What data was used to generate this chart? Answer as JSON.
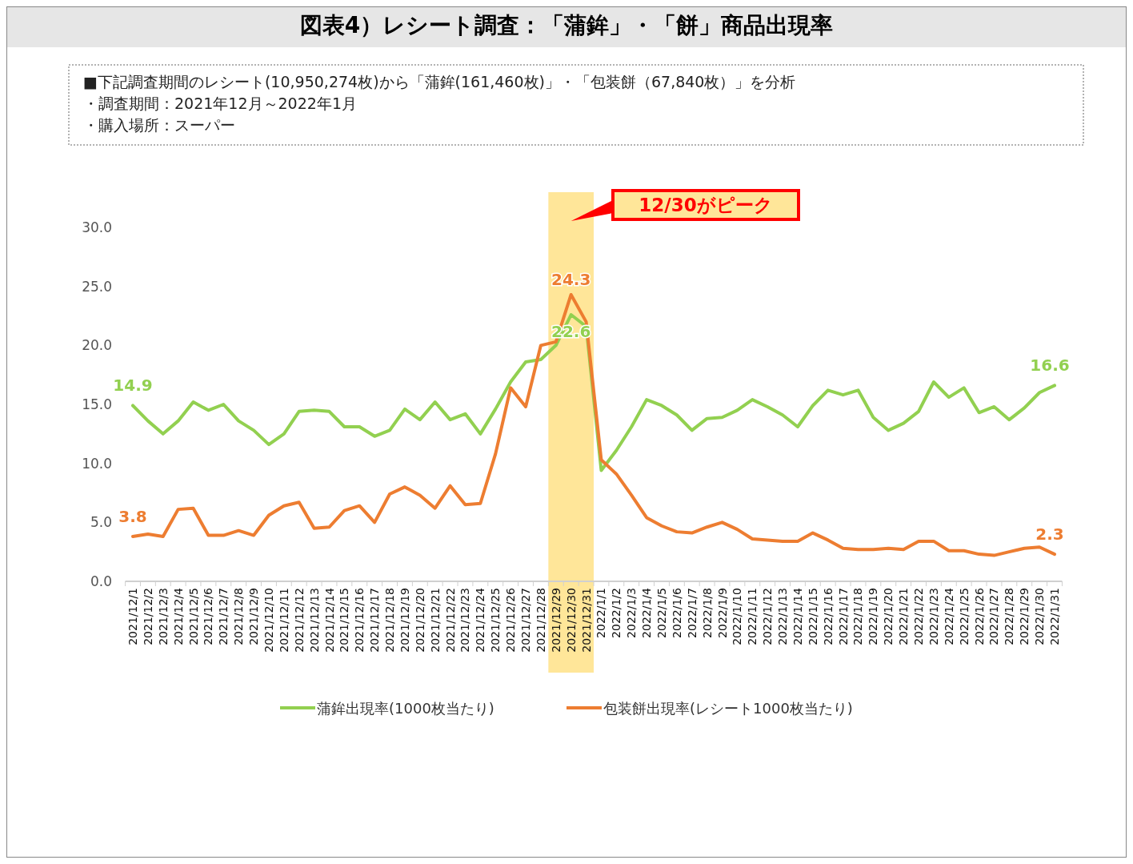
{
  "chart_data": {
    "type": "line",
    "title": "図表4）レシート調査：「蒲鉾」・「餅」商品出現率",
    "subtitle": "■下記調査期間のレシート(10,950,274枚)から「蒲鉾(161,460枚)」・「包装餅（67,840枚）」を分析",
    "categories": [
      "2021/12/1",
      "2021/12/2",
      "2021/12/3",
      "2021/12/4",
      "2021/12/5",
      "2021/12/6",
      "2021/12/7",
      "2021/12/8",
      "2021/12/9",
      "2021/12/10",
      "2021/12/11",
      "2021/12/12",
      "2021/12/13",
      "2021/12/14",
      "2021/12/15",
      "2021/12/16",
      "2021/12/17",
      "2021/12/18",
      "2021/12/19",
      "2021/12/20",
      "2021/12/21",
      "2021/12/22",
      "2021/12/23",
      "2021/12/24",
      "2021/12/25",
      "2021/12/26",
      "2021/12/27",
      "2021/12/28",
      "2021/12/29",
      "2021/12/30",
      "2021/12/31",
      "2022/1/1",
      "2022/1/2",
      "2022/1/3",
      "2022/1/4",
      "2022/1/5",
      "2022/1/6",
      "2022/1/7",
      "2022/1/8",
      "2022/1/9",
      "2022/1/10",
      "2022/1/11",
      "2022/1/12",
      "2022/1/13",
      "2022/1/14",
      "2022/1/15",
      "2022/1/16",
      "2022/1/17",
      "2022/1/18",
      "2022/1/19",
      "2022/1/20",
      "2022/1/21",
      "2022/1/22",
      "2022/1/23",
      "2022/1/24",
      "2022/1/25",
      "2022/1/26",
      "2022/1/27",
      "2022/1/28",
      "2022/1/29",
      "2022/1/30",
      "2022/1/31"
    ],
    "series": [
      {
        "name": "蒲鉾出現率(1000枚当たり)",
        "color": "#92d050",
        "values": [
          14.9,
          13.6,
          12.5,
          13.6,
          15.2,
          14.5,
          15.0,
          13.6,
          12.8,
          11.6,
          12.5,
          14.4,
          14.5,
          14.4,
          13.1,
          13.1,
          12.3,
          12.8,
          14.6,
          13.7,
          15.2,
          13.7,
          14.2,
          12.5,
          14.6,
          16.9,
          18.6,
          18.8,
          20.0,
          22.6,
          21.6,
          9.4,
          11.1,
          13.1,
          15.4,
          14.9,
          14.1,
          12.8,
          13.8,
          13.9,
          14.5,
          15.4,
          14.8,
          14.1,
          13.1,
          14.9,
          16.2,
          15.8,
          16.2,
          13.9,
          12.8,
          13.4,
          14.4,
          16.9,
          15.6,
          16.4,
          14.3,
          14.8,
          13.7,
          14.7,
          16.0,
          16.6
        ],
        "value_labels": [
          "14.9",
          null,
          null,
          null,
          null,
          null,
          null,
          null,
          null,
          null,
          null,
          null,
          null,
          null,
          null,
          null,
          null,
          null,
          null,
          null,
          null,
          null,
          null,
          null,
          null,
          null,
          null,
          null,
          null,
          "22.6",
          null,
          null,
          null,
          null,
          null,
          null,
          null,
          null,
          null,
          null,
          null,
          null,
          null,
          null,
          null,
          null,
          null,
          null,
          null,
          null,
          null,
          null,
          null,
          null,
          null,
          null,
          null,
          null,
          null,
          null,
          null,
          "16.6"
        ]
      },
      {
        "name": "包装餅出現率(レシート1000枚当たり)",
        "color": "#ed7d31",
        "values": [
          3.8,
          4.0,
          3.8,
          6.1,
          6.2,
          3.9,
          3.9,
          4.3,
          3.9,
          5.6,
          6.4,
          6.7,
          4.5,
          4.6,
          6.0,
          6.4,
          5.0,
          7.4,
          8.0,
          7.3,
          6.2,
          8.1,
          6.5,
          6.6,
          10.8,
          16.4,
          14.8,
          20.0,
          20.3,
          24.3,
          22.0,
          10.3,
          9.1,
          7.3,
          5.4,
          4.7,
          4.2,
          4.1,
          4.6,
          5.0,
          4.4,
          3.6,
          3.5,
          3.4,
          3.4,
          4.1,
          3.5,
          2.8,
          2.7,
          2.7,
          2.8,
          2.7,
          3.4,
          3.4,
          2.6,
          2.6,
          2.3,
          2.2,
          2.5,
          2.8,
          2.9,
          2.3
        ],
        "value_labels": [
          "3.8",
          null,
          null,
          null,
          null,
          null,
          null,
          null,
          null,
          null,
          null,
          null,
          null,
          null,
          null,
          null,
          null,
          null,
          null,
          null,
          null,
          null,
          null,
          null,
          null,
          null,
          null,
          null,
          null,
          "24.3",
          null,
          null,
          null,
          null,
          null,
          null,
          null,
          null,
          null,
          null,
          null,
          null,
          null,
          null,
          null,
          null,
          null,
          null,
          null,
          null,
          null,
          null,
          null,
          null,
          null,
          null,
          null,
          null,
          null,
          null,
          null,
          "2.3"
        ]
      }
    ],
    "ylim": [
      0,
      30
    ],
    "yticks": [
      {
        "value": 0,
        "label": "0.0"
      },
      {
        "value": 5,
        "label": "5.0"
      },
      {
        "value": 10,
        "label": "10.0"
      },
      {
        "value": 15,
        "label": "15.0"
      },
      {
        "value": 20,
        "label": "20.0"
      },
      {
        "value": 25,
        "label": "25.0"
      },
      {
        "value": 30,
        "label": "30.0"
      }
    ],
    "bands": [
      {
        "axis": "x",
        "from": "2021/12/29",
        "to": "2021/12/31",
        "color": "#ffe699"
      }
    ],
    "annotations": [
      "・調査期間：2021年12月～2022年1月",
      "・購入場所：スーパー",
      "12/30がピーク"
    ],
    "grid": false,
    "legend": "bottom",
    "marker": "none",
    "line_style": "solid"
  }
}
